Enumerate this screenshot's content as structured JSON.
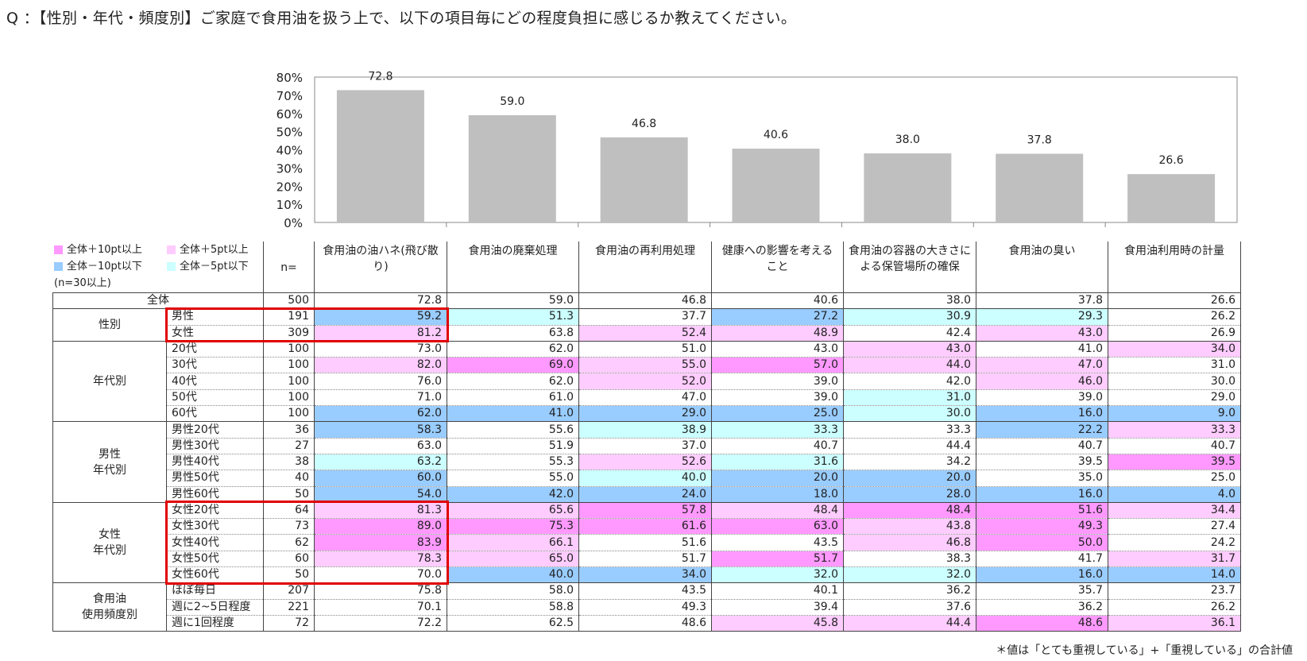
{
  "question": "Q ：【性別・年代・頻度別】ご家庭で食用油を扱う上で、以下の項目毎にどの程度負担に感じるか教えてください。",
  "colors": {
    "bar": "#bfbfbf",
    "pos10": "#ff99ff",
    "pos5": "#ffccff",
    "neg10": "#99ccff",
    "neg5": "#ccffff",
    "highlight": "#e00000"
  },
  "legend": {
    "items": [
      {
        "label": "全体＋10pt以上",
        "color": "#ff99ff"
      },
      {
        "label": "全体＋5pt以上",
        "color": "#ffccff"
      },
      {
        "label": "全体－10pt以下",
        "color": "#99ccff"
      },
      {
        "label": "全体－5pt以下",
        "color": "#ccffff"
      }
    ],
    "note": "(n=30以上)"
  },
  "chart_data": {
    "type": "bar",
    "categories": [
      "食用油の油ハネ(飛び散り)",
      "食用油の廃棄処理",
      "食用油の再利用処理",
      "健康への影響を考えること",
      "食用油の容器の大きさによる保管場所の確保",
      "食用油の臭い",
      "食用油利用時の計量"
    ],
    "values": [
      72.8,
      59.0,
      46.8,
      40.6,
      38.0,
      37.8,
      26.6
    ],
    "value_labels": [
      "72.8",
      "59.0",
      "46.8",
      "40.6",
      "38.0",
      "37.8",
      "26.6"
    ],
    "ylim": [
      0,
      80
    ],
    "yticks": [
      "0%",
      "10%",
      "20%",
      "30%",
      "40%",
      "50%",
      "60%",
      "70%",
      "80%"
    ],
    "title": "",
    "xlabel": "",
    "ylabel": ""
  },
  "table": {
    "n_header": "n=",
    "columns": [
      "食用油の油ハネ(飛び散り)",
      "食用油の廃棄処理",
      "食用油の再利用処理",
      "健康への影響を考えること",
      "食用油の容器の大きさによる保管場所の確保",
      "食用油の臭い",
      "食用油利用時の計量"
    ],
    "total": {
      "label": "全体",
      "n": "500",
      "values": [
        "72.8",
        "59.0",
        "46.8",
        "40.6",
        "38.0",
        "37.8",
        "26.6"
      ]
    },
    "groups": [
      {
        "label": "性別",
        "rows": [
          {
            "label": "男性",
            "n": "191",
            "values": [
              "59.2",
              "51.3",
              "37.7",
              "27.2",
              "30.9",
              "29.3",
              "26.2"
            ],
            "shades": [
              "neg10",
              "neg5",
              "",
              "neg10",
              "neg5",
              "neg5",
              ""
            ]
          },
          {
            "label": "女性",
            "n": "309",
            "values": [
              "81.2",
              "63.8",
              "52.4",
              "48.9",
              "42.4",
              "43.0",
              "26.9"
            ],
            "shades": [
              "pos5",
              "",
              "pos5",
              "pos5",
              "",
              "pos5",
              ""
            ]
          }
        ]
      },
      {
        "label": "年代別",
        "rows": [
          {
            "label": "20代",
            "n": "100",
            "values": [
              "73.0",
              "62.0",
              "51.0",
              "43.0",
              "43.0",
              "41.0",
              "34.0"
            ],
            "shades": [
              "",
              "",
              "",
              "",
              "pos5",
              "",
              "pos5"
            ]
          },
          {
            "label": "30代",
            "n": "100",
            "values": [
              "82.0",
              "69.0",
              "55.0",
              "57.0",
              "44.0",
              "47.0",
              "31.0"
            ],
            "shades": [
              "pos5",
              "pos10",
              "pos5",
              "pos10",
              "pos5",
              "pos5",
              ""
            ]
          },
          {
            "label": "40代",
            "n": "100",
            "values": [
              "76.0",
              "62.0",
              "52.0",
              "39.0",
              "42.0",
              "46.0",
              "30.0"
            ],
            "shades": [
              "",
              "",
              "pos5",
              "",
              "",
              "pos5",
              ""
            ]
          },
          {
            "label": "50代",
            "n": "100",
            "values": [
              "71.0",
              "61.0",
              "47.0",
              "39.0",
              "31.0",
              "39.0",
              "29.0"
            ],
            "shades": [
              "",
              "",
              "",
              "",
              "neg5",
              "",
              ""
            ]
          },
          {
            "label": "60代",
            "n": "100",
            "values": [
              "62.0",
              "41.0",
              "29.0",
              "25.0",
              "30.0",
              "16.0",
              "9.0"
            ],
            "shades": [
              "neg10",
              "neg10",
              "neg10",
              "neg10",
              "neg5",
              "neg10",
              "neg10"
            ]
          }
        ]
      },
      {
        "label": "男性\n年代別",
        "rows": [
          {
            "label": "男性20代",
            "n": "36",
            "values": [
              "58.3",
              "55.6",
              "38.9",
              "33.3",
              "33.3",
              "22.2",
              "33.3"
            ],
            "shades": [
              "neg10",
              "",
              "neg5",
              "neg5",
              "",
              "neg10",
              "pos5"
            ]
          },
          {
            "label": "男性30代",
            "n": "27",
            "values": [
              "63.0",
              "51.9",
              "37.0",
              "40.7",
              "44.4",
              "40.7",
              "40.7"
            ],
            "shades": [
              "",
              "",
              "",
              "",
              "",
              "",
              ""
            ]
          },
          {
            "label": "男性40代",
            "n": "38",
            "values": [
              "63.2",
              "55.3",
              "52.6",
              "31.6",
              "34.2",
              "39.5",
              "39.5"
            ],
            "shades": [
              "neg5",
              "",
              "pos5",
              "neg5",
              "",
              "",
              "pos10"
            ]
          },
          {
            "label": "男性50代",
            "n": "40",
            "values": [
              "60.0",
              "55.0",
              "40.0",
              "20.0",
              "20.0",
              "35.0",
              "25.0"
            ],
            "shades": [
              "neg10",
              "",
              "neg5",
              "neg10",
              "neg10",
              "",
              ""
            ]
          },
          {
            "label": "男性60代",
            "n": "50",
            "values": [
              "54.0",
              "42.0",
              "24.0",
              "18.0",
              "28.0",
              "16.0",
              "4.0"
            ],
            "shades": [
              "neg10",
              "neg10",
              "neg10",
              "neg10",
              "neg10",
              "neg10",
              "neg10"
            ]
          }
        ]
      },
      {
        "label": "女性\n年代別",
        "rows": [
          {
            "label": "女性20代",
            "n": "64",
            "values": [
              "81.3",
              "65.6",
              "57.8",
              "48.4",
              "48.4",
              "51.6",
              "34.4"
            ],
            "shades": [
              "pos5",
              "pos5",
              "pos10",
              "pos5",
              "pos10",
              "pos10",
              "pos5"
            ]
          },
          {
            "label": "女性30代",
            "n": "73",
            "values": [
              "89.0",
              "75.3",
              "61.6",
              "63.0",
              "43.8",
              "49.3",
              "27.4"
            ],
            "shades": [
              "pos10",
              "pos10",
              "pos10",
              "pos10",
              "pos5",
              "pos10",
              ""
            ]
          },
          {
            "label": "女性40代",
            "n": "62",
            "values": [
              "83.9",
              "66.1",
              "51.6",
              "43.5",
              "46.8",
              "50.0",
              "24.2"
            ],
            "shades": [
              "pos10",
              "pos5",
              "",
              "",
              "pos5",
              "pos10",
              ""
            ]
          },
          {
            "label": "女性50代",
            "n": "60",
            "values": [
              "78.3",
              "65.0",
              "51.7",
              "51.7",
              "38.3",
              "41.7",
              "31.7"
            ],
            "shades": [
              "pos5",
              "pos5",
              "",
              "pos10",
              "",
              "",
              "pos5"
            ]
          },
          {
            "label": "女性60代",
            "n": "50",
            "values": [
              "70.0",
              "40.0",
              "34.0",
              "32.0",
              "32.0",
              "16.0",
              "14.0"
            ],
            "shades": [
              "",
              "neg10",
              "neg10",
              "neg5",
              "neg5",
              "neg10",
              "neg10"
            ]
          }
        ]
      },
      {
        "label": "食用油\n使用頻度別",
        "rows": [
          {
            "label": "ほぼ毎日",
            "n": "207",
            "values": [
              "75.8",
              "58.0",
              "43.5",
              "40.1",
              "36.2",
              "35.7",
              "23.7"
            ],
            "shades": [
              "",
              "",
              "",
              "",
              "",
              "",
              ""
            ]
          },
          {
            "label": "週に2~5日程度",
            "n": "221",
            "values": [
              "70.1",
              "58.8",
              "49.3",
              "39.4",
              "37.6",
              "36.2",
              "26.2"
            ],
            "shades": [
              "",
              "",
              "",
              "",
              "",
              "",
              ""
            ]
          },
          {
            "label": "週に1回程度",
            "n": "72",
            "values": [
              "72.2",
              "62.5",
              "48.6",
              "45.8",
              "44.4",
              "48.6",
              "36.1"
            ],
            "shades": [
              "",
              "",
              "",
              "pos5",
              "pos5",
              "pos10",
              "pos5"
            ]
          }
        ]
      }
    ]
  },
  "footnote": "＊値は「とても重視している」+「重視している」の合計値"
}
